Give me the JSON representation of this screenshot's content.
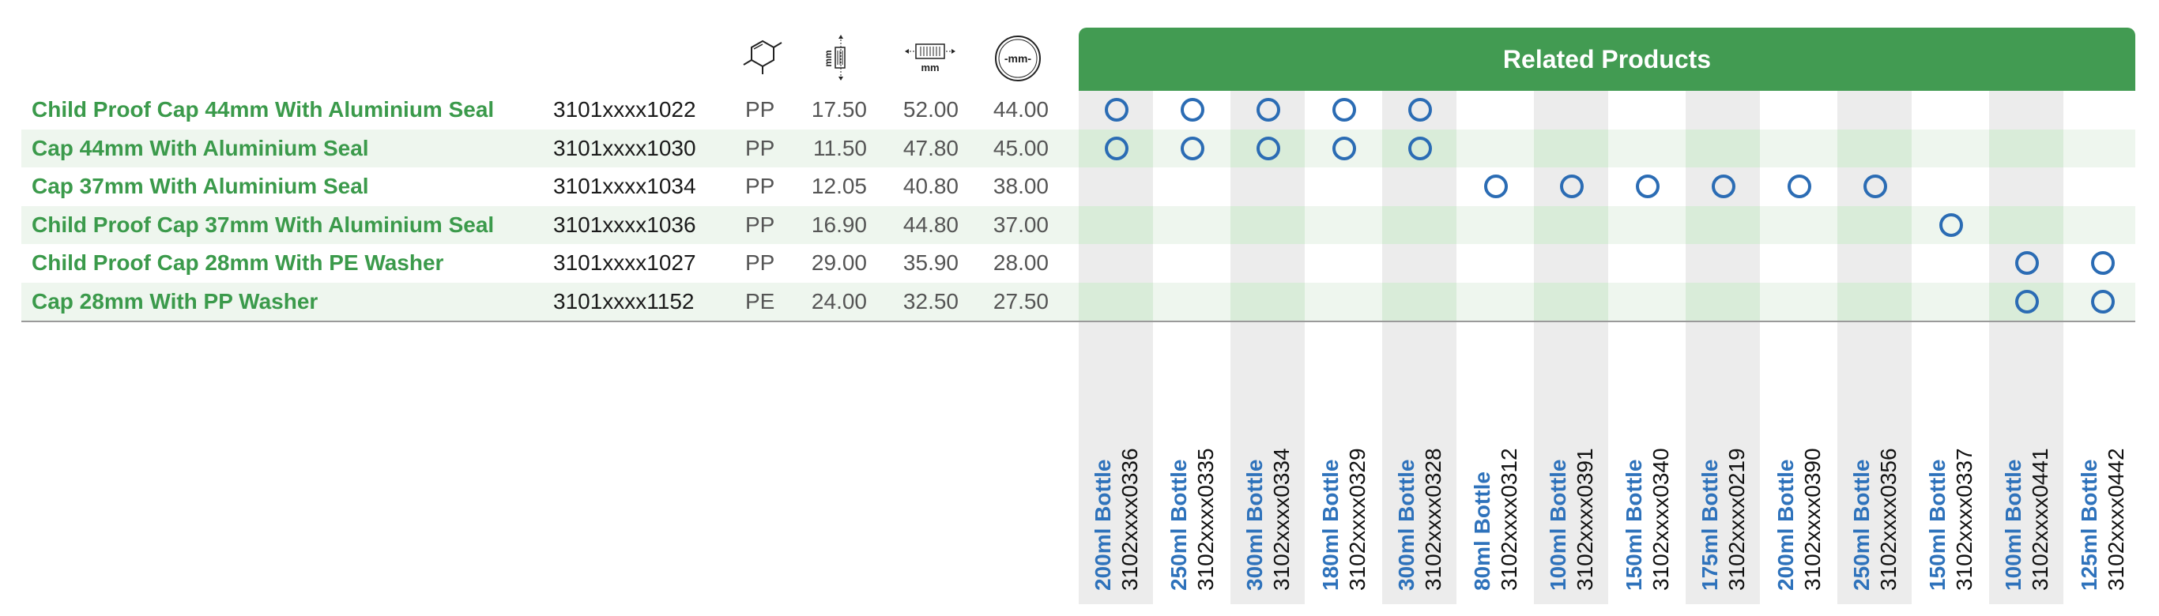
{
  "header": {
    "related_title": "Related Products"
  },
  "icons": [
    "material-molecule-icon",
    "height-mm-icon",
    "width-mm-icon",
    "diameter-mm-icon"
  ],
  "icon_texts": {
    "height_mm": "mm",
    "width_mm": "mm",
    "diameter_mm": "-mm-"
  },
  "products": [
    {
      "name": "Child Proof Cap 44mm With Aluminium Seal",
      "code": "3101xxxx1022",
      "material": "PP",
      "height": "17.50",
      "width": "52.00",
      "diameter": "44.00",
      "related": [
        0,
        1,
        2,
        3,
        4
      ]
    },
    {
      "name": "Cap 44mm With Aluminium Seal",
      "code": "3101xxxx1030",
      "material": "PP",
      "height": "11.50",
      "width": "47.80",
      "diameter": "45.00",
      "related": [
        0,
        1,
        2,
        3,
        4
      ]
    },
    {
      "name": "Cap 37mm With Aluminium Seal",
      "code": "3101xxxx1034",
      "material": "PP",
      "height": "12.05",
      "width": "40.80",
      "diameter": "38.00",
      "related": [
        5,
        6,
        7,
        8,
        9,
        10
      ]
    },
    {
      "name": "Child Proof Cap 37mm With Aluminium Seal",
      "code": "3101xxxx1036",
      "material": "PP",
      "height": "16.90",
      "width": "44.80",
      "diameter": "37.00",
      "related": [
        11
      ]
    },
    {
      "name": "Child Proof Cap 28mm With PE Washer",
      "code": "3101xxxx1027",
      "material": "PP",
      "height": "29.00",
      "width": "35.90",
      "diameter": "28.00",
      "related": [
        12,
        13
      ]
    },
    {
      "name": "Cap 28mm With PP Washer",
      "code": "3101xxxx1152",
      "material": "PE",
      "height": "24.00",
      "width": "32.50",
      "diameter": "27.50",
      "related": [
        12,
        13
      ]
    }
  ],
  "related_products": [
    {
      "label": "200ml Bottle",
      "code": "3102xxxx0336"
    },
    {
      "label": "250ml Bottle",
      "code": "3102xxxx0335"
    },
    {
      "label": "300ml Bottle",
      "code": "3102xxxx0334"
    },
    {
      "label": "180ml Bottle",
      "code": "3102xxxx0329"
    },
    {
      "label": "300ml Bottle",
      "code": "3102xxxx0328"
    },
    {
      "label": "80ml Bottle",
      "code": "3102xxxx0312"
    },
    {
      "label": "100ml Bottle",
      "code": "3102xxxx0391"
    },
    {
      "label": "150ml Bottle",
      "code": "3102xxxx0340"
    },
    {
      "label": "175ml Bottle",
      "code": "3102xxxx0219"
    },
    {
      "label": "200ml Bottle",
      "code": "3102xxxx0390"
    },
    {
      "label": "250ml Bottle",
      "code": "3102xxxx0356"
    },
    {
      "label": "150ml Bottle",
      "code": "3102xxxx0337"
    },
    {
      "label": "100ml Bottle",
      "code": "3102xxxx0441"
    },
    {
      "label": "125ml Bottle",
      "code": "3102xxxx0442"
    }
  ],
  "colors": {
    "accent_green": "#429b52",
    "name_green": "#3b9a4b",
    "dot_blue": "#2b6cb4",
    "label_blue": "#2e72bb"
  }
}
